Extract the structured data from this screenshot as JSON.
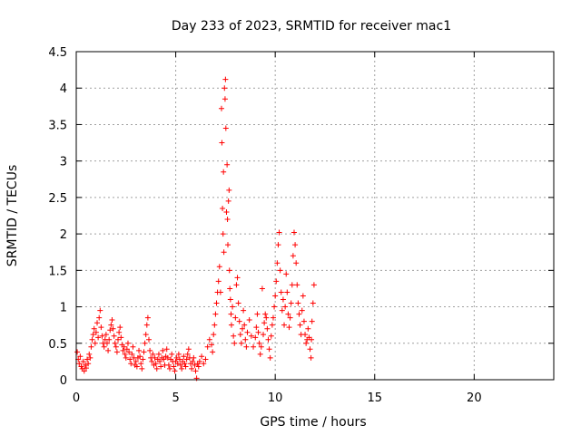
{
  "chart_data": {
    "type": "scatter",
    "title": "Day 233 of 2023, SRMTID for receiver mac1",
    "xlabel": "GPS time / hours",
    "ylabel": "SRMTID / TECUs",
    "xlim": [
      0,
      24
    ],
    "ylim": [
      0,
      4.5
    ],
    "xticks": [
      0,
      5,
      10,
      15,
      20
    ],
    "xtick_labels": [
      "0",
      "5",
      "10",
      "15",
      "20"
    ],
    "yticks": [
      0,
      0.5,
      1,
      1.5,
      2,
      2.5,
      3,
      3.5,
      4,
      4.5
    ],
    "ytick_labels": [
      "0",
      "0.5",
      "1",
      "1.5",
      "2",
      "2.5",
      "3",
      "3.5",
      "4",
      "4.5"
    ],
    "grid": true,
    "marker": "+",
    "color": "#ff0000",
    "series": [
      {
        "name": "mac1",
        "points": [
          [
            0.05,
            0.38
          ],
          [
            0.1,
            0.28
          ],
          [
            0.15,
            0.22
          ],
          [
            0.2,
            0.32
          ],
          [
            0.25,
            0.18
          ],
          [
            0.3,
            0.15
          ],
          [
            0.35,
            0.25
          ],
          [
            0.4,
            0.12
          ],
          [
            0.45,
            0.2
          ],
          [
            0.5,
            0.16
          ],
          [
            0.55,
            0.28
          ],
          [
            0.6,
            0.22
          ],
          [
            0.65,
            0.35
          ],
          [
            0.7,
            0.3
          ],
          [
            0.75,
            0.45
          ],
          [
            0.8,
            0.55
          ],
          [
            0.85,
            0.62
          ],
          [
            0.9,
            0.7
          ],
          [
            0.95,
            0.5
          ],
          [
            1.0,
            0.65
          ],
          [
            1.05,
            0.78
          ],
          [
            1.1,
            0.58
          ],
          [
            1.15,
            0.85
          ],
          [
            1.2,
            0.95
          ],
          [
            1.25,
            0.72
          ],
          [
            1.3,
            0.6
          ],
          [
            1.35,
            0.5
          ],
          [
            1.4,
            0.45
          ],
          [
            1.45,
            0.55
          ],
          [
            1.5,
            0.62
          ],
          [
            1.55,
            0.5
          ],
          [
            1.6,
            0.4
          ],
          [
            1.65,
            0.55
          ],
          [
            1.7,
            0.68
          ],
          [
            1.75,
            0.75
          ],
          [
            1.8,
            0.82
          ],
          [
            1.85,
            0.7
          ],
          [
            1.9,
            0.6
          ],
          [
            1.95,
            0.5
          ],
          [
            2.0,
            0.45
          ],
          [
            2.05,
            0.38
          ],
          [
            2.1,
            0.55
          ],
          [
            2.15,
            0.65
          ],
          [
            2.2,
            0.72
          ],
          [
            2.25,
            0.58
          ],
          [
            2.3,
            0.48
          ],
          [
            2.35,
            0.4
          ],
          [
            2.4,
            0.45
          ],
          [
            2.45,
            0.35
          ],
          [
            2.5,
            0.3
          ],
          [
            2.55,
            0.42
          ],
          [
            2.6,
            0.5
          ],
          [
            2.65,
            0.38
          ],
          [
            2.7,
            0.28
          ],
          [
            2.75,
            0.22
          ],
          [
            2.8,
            0.35
          ],
          [
            2.85,
            0.45
          ],
          [
            2.9,
            0.3
          ],
          [
            2.95,
            0.2
          ],
          [
            3.0,
            0.25
          ],
          [
            3.05,
            0.18
          ],
          [
            3.1,
            0.3
          ],
          [
            3.15,
            0.4
          ],
          [
            3.2,
            0.32
          ],
          [
            3.25,
            0.22
          ],
          [
            3.3,
            0.15
          ],
          [
            3.35,
            0.28
          ],
          [
            3.4,
            0.38
          ],
          [
            3.45,
            0.5
          ],
          [
            3.5,
            0.62
          ],
          [
            3.55,
            0.75
          ],
          [
            3.6,
            0.85
          ],
          [
            3.65,
            0.55
          ],
          [
            3.7,
            0.4
          ],
          [
            3.75,
            0.3
          ],
          [
            3.8,
            0.25
          ],
          [
            3.85,
            0.35
          ],
          [
            3.9,
            0.2
          ],
          [
            3.95,
            0.3
          ],
          [
            4.0,
            0.22
          ],
          [
            4.05,
            0.15
          ],
          [
            4.1,
            0.28
          ],
          [
            4.15,
            0.35
          ],
          [
            4.2,
            0.25
          ],
          [
            4.25,
            0.18
          ],
          [
            4.3,
            0.3
          ],
          [
            4.35,
            0.4
          ],
          [
            4.4,
            0.28
          ],
          [
            4.45,
            0.2
          ],
          [
            4.5,
            0.32
          ],
          [
            4.55,
            0.42
          ],
          [
            4.6,
            0.3
          ],
          [
            4.65,
            0.2
          ],
          [
            4.7,
            0.15
          ],
          [
            4.75,
            0.28
          ],
          [
            4.8,
            0.35
          ],
          [
            4.85,
            0.25
          ],
          [
            4.9,
            0.18
          ],
          [
            4.95,
            0.12
          ],
          [
            5.0,
            0.25
          ],
          [
            5.05,
            0.3
          ],
          [
            5.1,
            0.22
          ],
          [
            5.15,
            0.35
          ],
          [
            5.2,
            0.28
          ],
          [
            5.25,
            0.2
          ],
          [
            5.3,
            0.15
          ],
          [
            5.35,
            0.25
          ],
          [
            5.4,
            0.32
          ],
          [
            5.45,
            0.22
          ],
          [
            5.5,
            0.18
          ],
          [
            5.55,
            0.28
          ],
          [
            5.6,
            0.35
          ],
          [
            5.65,
            0.42
          ],
          [
            5.7,
            0.3
          ],
          [
            5.75,
            0.22
          ],
          [
            5.8,
            0.15
          ],
          [
            5.85,
            0.25
          ],
          [
            5.9,
            0.3
          ],
          [
            5.95,
            0.2
          ],
          [
            6.0,
            0.12
          ],
          [
            6.05,
            0.02
          ],
          [
            6.1,
            0.22
          ],
          [
            6.15,
            0.18
          ],
          [
            6.2,
            0.25
          ],
          [
            6.3,
            0.32
          ],
          [
            6.4,
            0.22
          ],
          [
            6.5,
            0.28
          ],
          [
            6.6,
            0.45
          ],
          [
            6.7,
            0.55
          ],
          [
            6.8,
            0.48
          ],
          [
            6.85,
            0.38
          ],
          [
            6.9,
            0.62
          ],
          [
            6.95,
            0.75
          ],
          [
            7.0,
            0.9
          ],
          [
            7.05,
            1.05
          ],
          [
            7.1,
            1.2
          ],
          [
            7.15,
            1.35
          ],
          [
            7.2,
            1.55
          ],
          [
            7.25,
            1.2
          ],
          [
            7.3,
            3.72
          ],
          [
            7.32,
            3.25
          ],
          [
            7.35,
            2.35
          ],
          [
            7.38,
            2.0
          ],
          [
            7.4,
            2.85
          ],
          [
            7.42,
            1.75
          ],
          [
            7.45,
            4.0
          ],
          [
            7.48,
            3.85
          ],
          [
            7.5,
            4.12
          ],
          [
            7.52,
            3.45
          ],
          [
            7.55,
            2.3
          ],
          [
            7.58,
            2.95
          ],
          [
            7.6,
            2.2
          ],
          [
            7.62,
            1.85
          ],
          [
            7.65,
            2.45
          ],
          [
            7.68,
            2.6
          ],
          [
            7.7,
            1.5
          ],
          [
            7.72,
            1.25
          ],
          [
            7.75,
            1.1
          ],
          [
            7.78,
            0.9
          ],
          [
            7.8,
            0.75
          ],
          [
            7.85,
            1.0
          ],
          [
            7.9,
            0.6
          ],
          [
            7.95,
            0.5
          ],
          [
            8.0,
            0.85
          ],
          [
            8.05,
            1.3
          ],
          [
            8.1,
            1.4
          ],
          [
            8.15,
            1.05
          ],
          [
            8.2,
            0.8
          ],
          [
            8.25,
            0.62
          ],
          [
            8.3,
            0.5
          ],
          [
            8.35,
            0.7
          ],
          [
            8.4,
            0.95
          ],
          [
            8.45,
            0.75
          ],
          [
            8.5,
            0.55
          ],
          [
            8.55,
            0.45
          ],
          [
            8.6,
            0.65
          ],
          [
            8.7,
            0.82
          ],
          [
            8.8,
            0.6
          ],
          [
            8.9,
            0.45
          ],
          [
            9.0,
            0.58
          ],
          [
            9.05,
            0.72
          ],
          [
            9.1,
            0.9
          ],
          [
            9.15,
            0.65
          ],
          [
            9.2,
            0.5
          ],
          [
            9.25,
            0.35
          ],
          [
            9.3,
            0.45
          ],
          [
            9.35,
            1.25
          ],
          [
            9.4,
            0.62
          ],
          [
            9.45,
            0.78
          ],
          [
            9.5,
            0.9
          ],
          [
            9.55,
            0.85
          ],
          [
            9.6,
            0.7
          ],
          [
            9.65,
            0.55
          ],
          [
            9.7,
            0.42
          ],
          [
            9.75,
            0.3
          ],
          [
            9.8,
            0.6
          ],
          [
            9.85,
            0.75
          ],
          [
            9.9,
            0.85
          ],
          [
            9.95,
            1.0
          ],
          [
            10.0,
            1.15
          ],
          [
            10.05,
            1.35
          ],
          [
            10.1,
            1.6
          ],
          [
            10.15,
            1.85
          ],
          [
            10.2,
            2.02
          ],
          [
            10.25,
            1.5
          ],
          [
            10.3,
            1.2
          ],
          [
            10.35,
            0.95
          ],
          [
            10.4,
            1.1
          ],
          [
            10.45,
            0.75
          ],
          [
            10.5,
            1.0
          ],
          [
            10.55,
            1.45
          ],
          [
            10.6,
            1.2
          ],
          [
            10.65,
            0.9
          ],
          [
            10.7,
            0.72
          ],
          [
            10.75,
            0.85
          ],
          [
            10.8,
            1.05
          ],
          [
            10.85,
            1.3
          ],
          [
            10.9,
            1.7
          ],
          [
            10.95,
            2.02
          ],
          [
            11.0,
            1.85
          ],
          [
            11.05,
            1.6
          ],
          [
            11.1,
            1.3
          ],
          [
            11.15,
            1.05
          ],
          [
            11.2,
            0.9
          ],
          [
            11.25,
            0.75
          ],
          [
            11.3,
            0.62
          ],
          [
            11.35,
            0.95
          ],
          [
            11.4,
            1.15
          ],
          [
            11.45,
            0.8
          ],
          [
            11.5,
            0.62
          ],
          [
            11.55,
            0.5
          ],
          [
            11.6,
            0.55
          ],
          [
            11.65,
            0.7
          ],
          [
            11.7,
            0.58
          ],
          [
            11.75,
            0.42
          ],
          [
            11.8,
            0.3
          ],
          [
            11.82,
            0.55
          ],
          [
            11.85,
            0.8
          ],
          [
            11.9,
            1.05
          ],
          [
            11.95,
            1.3
          ]
        ]
      }
    ]
  }
}
